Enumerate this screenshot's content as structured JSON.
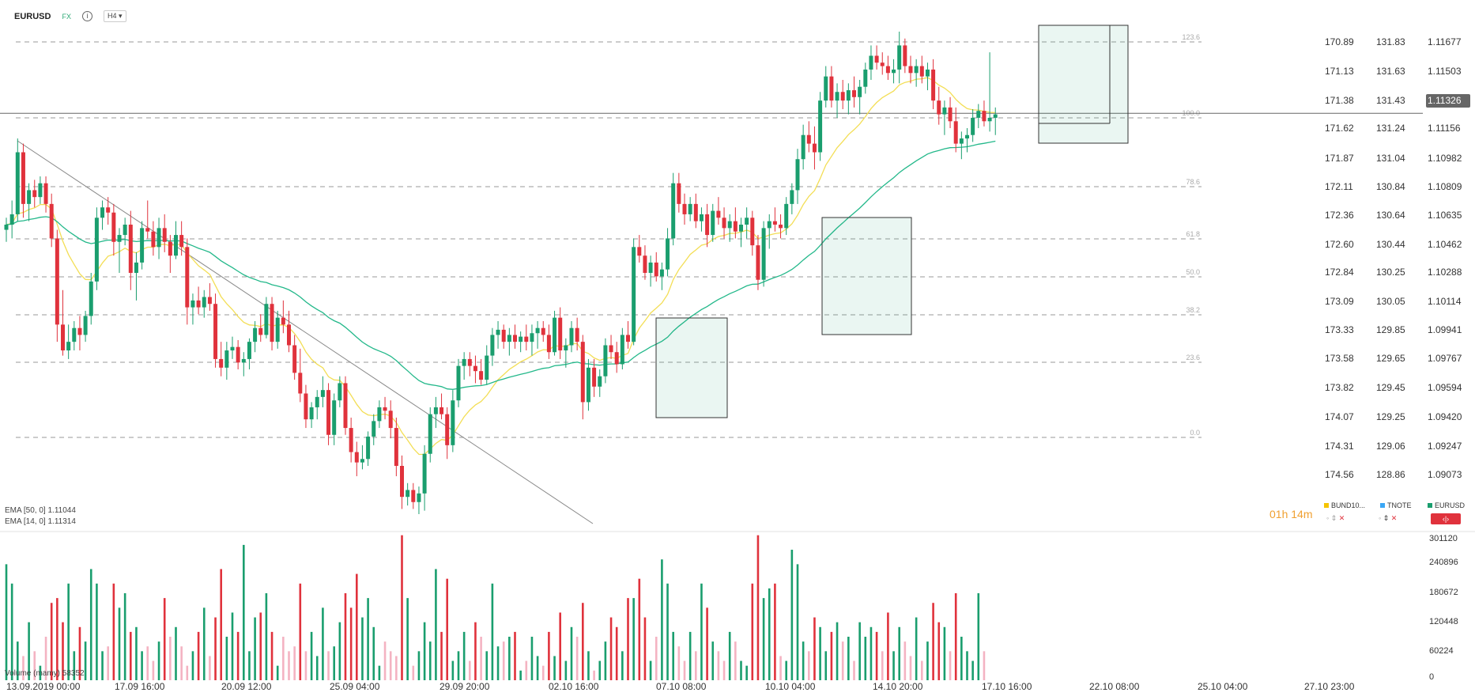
{
  "header": {
    "symbol": "EURUSD",
    "market": "FX",
    "timeframe": "H4"
  },
  "countdown": "01h 14m",
  "price_axes": {
    "col1": [
      "170.89",
      "171.13",
      "171.38",
      "171.62",
      "171.87",
      "172.11",
      "172.36",
      "172.60",
      "172.84",
      "173.09",
      "173.33",
      "173.58",
      "173.82",
      "174.07",
      "174.31",
      "174.56"
    ],
    "col2": [
      "131.83",
      "131.63",
      "131.43",
      "131.24",
      "131.04",
      "130.84",
      "130.64",
      "130.44",
      "130.25",
      "130.05",
      "129.85",
      "129.65",
      "129.45",
      "129.25",
      "129.06",
      "128.86"
    ],
    "col3": [
      "1.11677",
      "1.11503",
      "1.11326",
      "1.11156",
      "1.10982",
      "1.10809",
      "1.10635",
      "1.10462",
      "1.10288",
      "1.10114",
      "1.09941",
      "1.09767",
      "1.09594",
      "1.09420",
      "1.09247",
      "1.09073"
    ],
    "current_price": "1.11326"
  },
  "fib_levels": [
    "123.6",
    "100.0",
    "78.6",
    "61.8",
    "50.0",
    "38.2",
    "23.6",
    "0.0"
  ],
  "volume_axis": [
    "301120",
    "240896",
    "180672",
    "120448",
    "60224",
    "0"
  ],
  "time_labels": [
    "13.09.2019 00:00",
    "17.09 16:00",
    "20.09 12:00",
    "25.09 04:00",
    "29.09 20:00",
    "02.10 16:00",
    "07.10 08:00",
    "10.10 04:00",
    "14.10 20:00",
    "17.10 16:00",
    "22.10 08:00",
    "25.10 04:00",
    "27.10 23:00"
  ],
  "legend": [
    {
      "name": "BUND10...",
      "color": "#f5c400"
    },
    {
      "name": "TNOTE",
      "color": "#3ba7f5"
    },
    {
      "name": "EURUSD",
      "color": "#1a9e6e"
    }
  ],
  "indicators": {
    "ema50": "EMA [50, 0]  1.11044",
    "ema14": "EMA [14, 0]  1.11314",
    "volume": "Volume (mamy)  58352"
  },
  "colors": {
    "up": "#1a9e6e",
    "down": "#e0323c",
    "ema_fast": "#f3de55",
    "ema_slow": "#23b88a",
    "vol_down_light": "#f4b3c2"
  },
  "chart_data": {
    "type": "candlestick",
    "symbol": "EURUSD",
    "timeframe": "H4",
    "x_range": [
      "13.09.2019 00:00",
      "27.10 23:00"
    ],
    "ylim": [
      1.09,
      1.118
    ],
    "candles": [
      [
        1.1065,
        1.1072,
        1.1058,
        1.1068
      ],
      [
        1.1068,
        1.1082,
        1.106,
        1.1074
      ],
      [
        1.1074,
        1.1118,
        1.107,
        1.111
      ],
      [
        1.111,
        1.1115,
        1.1072,
        1.108
      ],
      [
        1.108,
        1.1092,
        1.107,
        1.1088
      ],
      [
        1.1088,
        1.1094,
        1.1078,
        1.1084
      ],
      [
        1.1084,
        1.1096,
        1.108,
        1.1092
      ],
      [
        1.1092,
        1.1096,
        1.1075,
        1.108
      ],
      [
        1.108,
        1.1086,
        1.1055,
        1.106
      ],
      [
        1.106,
        1.1065,
        1.1,
        1.101
      ],
      [
        1.101,
        1.103,
        1.0992,
        1.0995
      ],
      [
        1.0995,
        1.101,
        1.099,
        1.1
      ],
      [
        1.1,
        1.1012,
        1.0995,
        1.1008
      ],
      [
        1.1008,
        1.1015,
        1.0995,
        1.1004
      ],
      [
        1.1004,
        1.1018,
        1.1,
        1.1015
      ],
      [
        1.1015,
        1.104,
        1.101,
        1.1035
      ],
      [
        1.1035,
        1.1078,
        1.103,
        1.1072
      ],
      [
        1.1072,
        1.1082,
        1.1065,
        1.1078
      ],
      [
        1.1078,
        1.1084,
        1.1068,
        1.1075
      ],
      [
        1.1075,
        1.108,
        1.105,
        1.1058
      ],
      [
        1.1058,
        1.1066,
        1.104,
        1.1062
      ],
      [
        1.1062,
        1.1072,
        1.1056,
        1.1068
      ],
      [
        1.1068,
        1.1076,
        1.103,
        1.104
      ],
      [
        1.104,
        1.1052,
        1.1024,
        1.1046
      ],
      [
        1.1046,
        1.107,
        1.1042,
        1.1066
      ],
      [
        1.1066,
        1.1082,
        1.106,
        1.1064
      ],
      [
        1.1064,
        1.107,
        1.105,
        1.1055
      ],
      [
        1.1055,
        1.1072,
        1.1048,
        1.1066
      ],
      [
        1.1066,
        1.1074,
        1.1052,
        1.1058
      ],
      [
        1.1058,
        1.1062,
        1.104,
        1.105
      ],
      [
        1.105,
        1.107,
        1.1048,
        1.1062
      ],
      [
        1.1062,
        1.107,
        1.105,
        1.1055
      ],
      [
        1.1055,
        1.106,
        1.101,
        1.102
      ],
      [
        1.102,
        1.1028,
        1.101,
        1.1024
      ],
      [
        1.1024,
        1.1032,
        1.1016,
        1.102
      ],
      [
        1.102,
        1.103,
        1.1014,
        1.1026
      ],
      [
        1.1026,
        1.1034,
        1.1018,
        1.1022
      ],
      [
        1.1022,
        1.1028,
        1.0985,
        1.099
      ],
      [
        1.099,
        1.1,
        1.098,
        1.0985
      ],
      [
        1.0985,
        1.1,
        1.0978,
        1.0995
      ],
      [
        1.0995,
        1.1003,
        1.099,
        1.0997
      ],
      [
        1.0997,
        1.1001,
        1.0984,
        1.0988
      ],
      [
        1.0988,
        1.0994,
        1.098,
        1.099
      ],
      [
        1.099,
        1.1002,
        1.0984,
        1.1
      ],
      [
        1.1,
        1.1012,
        1.0994,
        1.1008
      ],
      [
        1.1008,
        1.1016,
        1.1,
        1.1004
      ],
      [
        1.1004,
        1.1026,
        1.1002,
        1.1022
      ],
      [
        1.1022,
        1.1026,
        1.0995,
        1.1
      ],
      [
        1.1,
        1.1018,
        1.0996,
        1.1014
      ],
      [
        1.1014,
        1.1024,
        1.1005,
        1.101
      ],
      [
        1.101,
        1.1018,
        1.0994,
        1.0998
      ],
      [
        1.0998,
        1.1004,
        1.0978,
        1.0982
      ],
      [
        1.0982,
        1.0996,
        1.0965,
        1.097
      ],
      [
        1.097,
        1.0975,
        1.095,
        1.0955
      ],
      [
        1.0955,
        1.0965,
        1.095,
        1.0962
      ],
      [
        1.0962,
        1.0972,
        1.0955,
        1.0968
      ],
      [
        1.0968,
        1.098,
        1.0962,
        1.0972
      ],
      [
        1.0972,
        1.0976,
        1.094,
        1.0946
      ],
      [
        1.0946,
        1.097,
        1.094,
        1.0966
      ],
      [
        1.0966,
        1.098,
        1.0962,
        1.0976
      ],
      [
        1.0976,
        1.098,
        1.0946,
        1.095
      ],
      [
        1.095,
        1.0956,
        1.093,
        1.0936
      ],
      [
        1.0936,
        1.0942,
        1.0922,
        1.093
      ],
      [
        1.093,
        1.094,
        1.0926,
        1.0932
      ],
      [
        1.0932,
        1.0948,
        1.0928,
        1.0945
      ],
      [
        1.0945,
        1.0958,
        1.094,
        1.0954
      ],
      [
        1.0954,
        1.0966,
        1.095,
        1.0962
      ],
      [
        1.0962,
        1.0968,
        1.0955,
        1.096
      ],
      [
        1.096,
        1.0966,
        1.0944,
        1.095
      ],
      [
        1.095,
        1.0956,
        1.0922,
        1.0928
      ],
      [
        1.0928,
        1.0934,
        1.0903,
        1.091
      ],
      [
        1.091,
        1.0918,
        1.0905,
        1.0914
      ],
      [
        1.0914,
        1.0918,
        1.0903,
        1.0907
      ],
      [
        1.0907,
        1.0916,
        1.09,
        1.0912
      ],
      [
        1.0912,
        1.094,
        1.0902,
        1.0935
      ],
      [
        1.0935,
        1.0962,
        1.093,
        1.0958
      ],
      [
        1.0958,
        1.0968,
        1.095,
        1.0962
      ],
      [
        1.0962,
        1.097,
        1.0955,
        1.0958
      ],
      [
        1.0958,
        1.0962,
        1.0932,
        1.094
      ],
      [
        1.094,
        1.0972,
        1.0936,
        1.0966
      ],
      [
        1.0966,
        1.099,
        1.0962,
        1.0986
      ],
      [
        1.0986,
        1.0994,
        1.0978,
        1.099
      ],
      [
        1.099,
        1.0994,
        1.098,
        1.0986
      ],
      [
        1.0986,
        1.0992,
        1.0976,
        1.0983
      ],
      [
        1.0983,
        1.099,
        1.0975,
        1.0978
      ],
      [
        1.0978,
        1.0998,
        1.0975,
        1.0992
      ],
      [
        1.0992,
        1.1008,
        1.0986,
        1.1004
      ],
      [
        1.1004,
        1.1012,
        1.0996,
        1.1007
      ],
      [
        1.1007,
        1.101,
        1.0996,
        1.1
      ],
      [
        1.1,
        1.1008,
        1.0992,
        1.1004
      ],
      [
        1.1004,
        1.101,
        1.0996,
        1.1
      ],
      [
        1.1,
        1.1006,
        1.0994,
        1.1003
      ],
      [
        1.1003,
        1.101,
        1.0995,
        1.1
      ],
      [
        1.1,
        1.101,
        1.0992,
        1.1005
      ],
      [
        1.1005,
        1.1012,
        1.0996,
        1.1008
      ],
      [
        1.1008,
        1.1012,
        1.1,
        1.1004
      ],
      [
        1.1004,
        1.101,
        1.099,
        1.0994
      ],
      [
        1.0994,
        1.1018,
        1.0992,
        1.1014
      ],
      [
        1.1014,
        1.102,
        1.099,
        1.0995
      ],
      [
        1.0995,
        1.1002,
        1.0985,
        1.0998
      ],
      [
        1.0998,
        1.1012,
        1.0994,
        1.1008
      ],
      [
        1.1008,
        1.1014,
        1.0995,
        1.1
      ],
      [
        1.1,
        1.1004,
        1.0955,
        1.0965
      ],
      [
        1.0965,
        1.099,
        1.096,
        1.0985
      ],
      [
        1.0985,
        1.099,
        1.0968,
        1.0974
      ],
      [
        1.0974,
        1.0984,
        1.0968,
        1.098
      ],
      [
        1.098,
        1.1002,
        1.0976,
        1.0998
      ],
      [
        1.0998,
        1.1004,
        1.099,
        1.0994
      ],
      [
        1.0994,
        1.1,
        1.0982,
        1.0987
      ],
      [
        1.0987,
        1.1008,
        1.0984,
        1.1004
      ],
      [
        1.1004,
        1.1012,
        1.0996,
        1.1
      ],
      [
        1.1,
        1.106,
        1.0998,
        1.1055
      ],
      [
        1.1055,
        1.1062,
        1.1046,
        1.105
      ],
      [
        1.105,
        1.1056,
        1.1036,
        1.104
      ],
      [
        1.104,
        1.105,
        1.1032,
        1.1046
      ],
      [
        1.1046,
        1.1052,
        1.1035,
        1.1038
      ],
      [
        1.1038,
        1.1046,
        1.103,
        1.1042
      ],
      [
        1.1042,
        1.1066,
        1.1038,
        1.106
      ],
      [
        1.106,
        1.1098,
        1.1056,
        1.1092
      ],
      [
        1.1092,
        1.1098,
        1.1075,
        1.108
      ],
      [
        1.108,
        1.1086,
        1.1068,
        1.1074
      ],
      [
        1.1074,
        1.1084,
        1.107,
        1.108
      ],
      [
        1.108,
        1.1086,
        1.1066,
        1.107
      ],
      [
        1.107,
        1.1078,
        1.1064,
        1.1074
      ],
      [
        1.1074,
        1.108,
        1.1055,
        1.1062
      ],
      [
        1.1062,
        1.108,
        1.1058,
        1.1076
      ],
      [
        1.1076,
        1.1084,
        1.1068,
        1.1072
      ],
      [
        1.1072,
        1.1078,
        1.106,
        1.1066
      ],
      [
        1.1066,
        1.1074,
        1.1058,
        1.107
      ],
      [
        1.107,
        1.1078,
        1.106,
        1.1064
      ],
      [
        1.1064,
        1.1072,
        1.1055,
        1.1068
      ],
      [
        1.1068,
        1.1078,
        1.106,
        1.1072
      ],
      [
        1.1072,
        1.1076,
        1.105,
        1.1056
      ],
      [
        1.1056,
        1.1062,
        1.103,
        1.1036
      ],
      [
        1.1036,
        1.107,
        1.1032,
        1.1066
      ],
      [
        1.1066,
        1.1074,
        1.1054,
        1.107
      ],
      [
        1.107,
        1.1078,
        1.1064,
        1.1068
      ],
      [
        1.1068,
        1.1074,
        1.106,
        1.1066
      ],
      [
        1.1066,
        1.1084,
        1.1062,
        1.108
      ],
      [
        1.108,
        1.1092,
        1.1074,
        1.1088
      ],
      [
        1.1088,
        1.1112,
        1.108,
        1.1106
      ],
      [
        1.1106,
        1.1126,
        1.11,
        1.112
      ],
      [
        1.112,
        1.1128,
        1.111,
        1.1115
      ],
      [
        1.1115,
        1.1125,
        1.11,
        1.111
      ],
      [
        1.111,
        1.1145,
        1.1105,
        1.114
      ],
      [
        1.114,
        1.116,
        1.1136,
        1.1154
      ],
      [
        1.1154,
        1.116,
        1.1136,
        1.114
      ],
      [
        1.114,
        1.115,
        1.113,
        1.1145
      ],
      [
        1.1145,
        1.1152,
        1.1135,
        1.114
      ],
      [
        1.114,
        1.115,
        1.1132,
        1.1146
      ],
      [
        1.1146,
        1.1154,
        1.1136,
        1.1142
      ],
      [
        1.1142,
        1.1152,
        1.1132,
        1.1148
      ],
      [
        1.1148,
        1.1162,
        1.1144,
        1.1158
      ],
      [
        1.1158,
        1.1172,
        1.1152,
        1.1166
      ],
      [
        1.1166,
        1.1172,
        1.1158,
        1.1162
      ],
      [
        1.1162,
        1.1168,
        1.1155,
        1.116
      ],
      [
        1.116,
        1.1166,
        1.1152,
        1.1156
      ],
      [
        1.1156,
        1.1164,
        1.115,
        1.1158
      ],
      [
        1.1158,
        1.118,
        1.115,
        1.1172
      ],
      [
        1.1172,
        1.1176,
        1.1156,
        1.116
      ],
      [
        1.116,
        1.1166,
        1.115,
        1.1156
      ],
      [
        1.1156,
        1.1164,
        1.1148,
        1.116
      ],
      [
        1.116,
        1.1166,
        1.115,
        1.1154
      ],
      [
        1.1154,
        1.1162,
        1.1146,
        1.1158
      ],
      [
        1.1158,
        1.1164,
        1.1135,
        1.114
      ],
      [
        1.114,
        1.1148,
        1.1126,
        1.1132
      ],
      [
        1.1132,
        1.114,
        1.112,
        1.1136
      ],
      [
        1.1136,
        1.1142,
        1.1124,
        1.1128
      ],
      [
        1.1128,
        1.1136,
        1.111,
        1.1115
      ],
      [
        1.1115,
        1.1122,
        1.1106,
        1.1118
      ],
      [
        1.1118,
        1.1124,
        1.111,
        1.112
      ],
      [
        1.112,
        1.1135,
        1.1116,
        1.113
      ],
      [
        1.113,
        1.1138,
        1.1124,
        1.1134
      ],
      [
        1.1134,
        1.114,
        1.1125,
        1.1128
      ],
      [
        1.1128,
        1.1168,
        1.1122,
        1.113
      ],
      [
        1.113,
        1.1136,
        1.112,
        1.1132
      ]
    ],
    "volume": [
      240000,
      200000,
      80000,
      50000,
      120000,
      60000,
      30000,
      90000,
      160000,
      170000,
      120000,
      200000,
      60000,
      110000,
      80000,
      230000,
      200000,
      60000,
      70000,
      200000,
      150000,
      180000,
      100000,
      110000,
      60000,
      70000,
      40000,
      80000,
      170000,
      90000,
      110000,
      70000,
      30000,
      60000,
      100000,
      150000,
      50000,
      130000,
      230000,
      90000,
      140000,
      100000,
      280000,
      60000,
      130000,
      140000,
      180000,
      100000,
      30000,
      90000,
      60000,
      70000,
      200000,
      60000,
      100000,
      50000,
      150000,
      60000,
      70000,
      120000,
      180000,
      150000,
      220000,
      130000,
      170000,
      110000,
      30000,
      80000,
      60000,
      50000,
      300000,
      170000,
      30000,
      60000,
      120000,
      80000,
      230000,
      100000,
      210000,
      40000,
      60000,
      100000,
      40000,
      120000,
      90000,
      60000,
      200000,
      70000,
      80000,
      90000,
      100000,
      20000,
      40000,
      90000,
      50000,
      30000,
      100000,
      50000,
      140000,
      40000,
      110000,
      90000,
      160000,
      60000,
      20000,
      40000,
      80000,
      130000,
      110000,
      60000,
      170000,
      170000,
      210000,
      130000,
      40000,
      90000,
      250000,
      200000,
      100000,
      70000,
      40000,
      100000,
      60000,
      200000,
      150000,
      80000,
      60000,
      40000,
      100000,
      80000,
      40000,
      30000,
      200000,
      300000,
      170000,
      190000,
      200000,
      50000,
      40000,
      270000,
      240000,
      80000,
      60000,
      130000,
      110000,
      60000,
      100000,
      120000,
      80000,
      90000,
      40000,
      120000,
      90000,
      110000,
      100000,
      60000,
      140000,
      60000,
      110000,
      80000,
      50000,
      130000,
      40000,
      80000,
      160000,
      120000,
      110000,
      60000,
      180000,
      90000,
      60000,
      40000,
      180000,
      60000
    ]
  }
}
